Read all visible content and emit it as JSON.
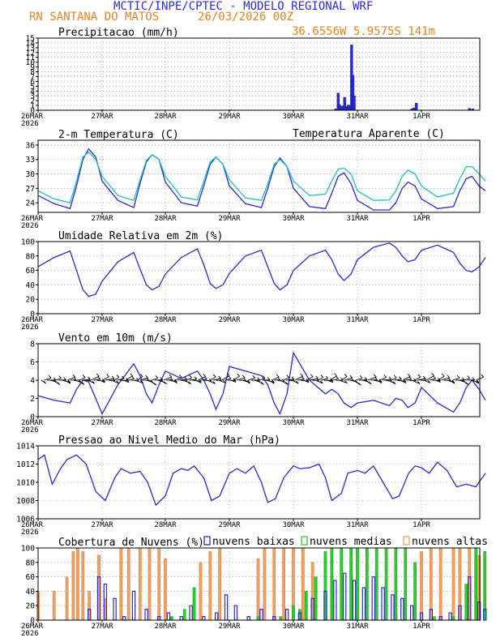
{
  "header": {
    "title": "MCTIC/INPE/CPTEC - MODELO REGIONAL WRF",
    "station": "RN SANTANA DO MATOS",
    "run": "26/03/2026 00Z",
    "coords": "36.6556W 5.9575S 141m",
    "title_color": "#2a2ae8",
    "subtitle_color": "#e8821e"
  },
  "axis": {
    "first_label": "26MAR",
    "first_year": "2026",
    "day_labels": [
      "27MAR",
      "28MAR",
      "29MAR",
      "30MAR",
      "31MAR",
      "1APR"
    ]
  },
  "chart_data": [
    {
      "type": "bar",
      "title": "Precipitacao (mm/h)",
      "ylim": [
        0,
        15
      ],
      "yticks": [
        0,
        1,
        2,
        3,
        4,
        5,
        6,
        7,
        8,
        9,
        10,
        11,
        12,
        13,
        14,
        15
      ],
      "color": "#2929d6",
      "x_unit": "days since 26MAR 00Z",
      "points": [
        {
          "x": 1.0,
          "y": 0.1
        },
        {
          "x": 3.02,
          "y": 0.1
        },
        {
          "x": 4.66,
          "y": 0.3
        },
        {
          "x": 4.7,
          "y": 3.6
        },
        {
          "x": 4.72,
          "y": 1.2
        },
        {
          "x": 4.76,
          "y": 0.9
        },
        {
          "x": 4.8,
          "y": 2.7
        },
        {
          "x": 4.84,
          "y": 0.8
        },
        {
          "x": 4.86,
          "y": 1.1
        },
        {
          "x": 4.88,
          "y": 0.9
        },
        {
          "x": 4.91,
          "y": 13.6
        },
        {
          "x": 4.93,
          "y": 7.3
        },
        {
          "x": 4.95,
          "y": 3.0
        },
        {
          "x": 5.85,
          "y": 0.3
        },
        {
          "x": 5.88,
          "y": 0.5
        },
        {
          "x": 5.92,
          "y": 1.5
        },
        {
          "x": 6.75,
          "y": 0.4
        },
        {
          "x": 6.8,
          "y": 0.3
        }
      ]
    },
    {
      "type": "line",
      "title": "2-m Temperatura (C)",
      "ylim": [
        22,
        37
      ],
      "yticks": [
        24,
        27,
        30,
        33,
        36
      ],
      "series": [
        {
          "name": "2-m Temperatura (C)",
          "color": "#2929d6",
          "x": [
            0.0,
            0.25,
            0.5,
            0.6,
            0.7,
            0.79,
            0.9,
            1.0,
            1.25,
            1.5,
            1.6,
            1.7,
            1.79,
            1.9,
            2.0,
            2.25,
            2.5,
            2.6,
            2.7,
            2.79,
            2.9,
            3.0,
            3.25,
            3.5,
            3.6,
            3.7,
            3.79,
            3.9,
            4.0,
            4.25,
            4.5,
            4.6,
            4.7,
            4.79,
            4.9,
            5.0,
            5.25,
            5.5,
            5.6,
            5.7,
            5.79,
            5.9,
            6.0,
            6.25,
            6.5,
            6.6,
            6.7,
            6.79,
            6.9,
            7.0
          ],
          "y": [
            25.5,
            23.8,
            22.8,
            27.5,
            33.0,
            35.2,
            33.5,
            28.5,
            24.5,
            23.0,
            28.0,
            32.5,
            34.0,
            33.0,
            28.3,
            24.0,
            23.3,
            27.5,
            32.0,
            33.5,
            32.0,
            27.5,
            23.8,
            23.0,
            27.0,
            31.5,
            33.3,
            31.5,
            27.0,
            23.2,
            22.8,
            26.0,
            29.5,
            30.2,
            28.0,
            24.5,
            22.5,
            22.5,
            24.0,
            27.0,
            28.3,
            27.5,
            24.8,
            22.8,
            23.2,
            26.5,
            29.0,
            29.5,
            27.5,
            26.5
          ]
        },
        {
          "name": "Temperatura Aparente (C)",
          "color": "#20c0c0",
          "x": [
            0.0,
            0.25,
            0.5,
            0.6,
            0.7,
            0.79,
            0.9,
            1.0,
            1.25,
            1.5,
            1.6,
            1.7,
            1.79,
            1.9,
            2.0,
            2.25,
            2.5,
            2.6,
            2.7,
            2.79,
            2.9,
            3.0,
            3.25,
            3.5,
            3.6,
            3.7,
            3.79,
            3.9,
            4.0,
            4.25,
            4.5,
            4.6,
            4.7,
            4.79,
            4.9,
            5.0,
            5.25,
            5.5,
            5.6,
            5.7,
            5.79,
            5.9,
            6.0,
            6.25,
            6.5,
            6.6,
            6.7,
            6.79,
            6.9,
            7.0
          ],
          "y": [
            26.5,
            24.8,
            24.0,
            28.5,
            33.5,
            34.5,
            33.0,
            29.5,
            25.5,
            24.5,
            28.8,
            32.8,
            34.0,
            33.0,
            29.5,
            25.2,
            24.6,
            28.5,
            32.5,
            33.5,
            32.0,
            28.8,
            25.0,
            24.5,
            28.0,
            32.0,
            33.0,
            31.5,
            28.5,
            25.5,
            25.8,
            28.5,
            31.0,
            31.2,
            30.0,
            26.5,
            24.5,
            24.6,
            26.5,
            29.5,
            30.8,
            30.0,
            27.5,
            25.2,
            26.0,
            29.0,
            31.5,
            31.5,
            30.0,
            28.5
          ]
        }
      ],
      "legend": "Temperatura Aparente (C)"
    },
    {
      "type": "line",
      "title": "Umidade Relativa em 2m (%)",
      "ylim": [
        0,
        100
      ],
      "yticks": [
        0,
        20,
        40,
        60,
        80,
        100
      ],
      "series": [
        {
          "name": "Umidade Relativa em 2m (%)",
          "color": "#2929d6",
          "x": [
            0.0,
            0.25,
            0.5,
            0.6,
            0.7,
            0.79,
            0.9,
            1.0,
            1.25,
            1.5,
            1.6,
            1.7,
            1.79,
            1.9,
            2.0,
            2.25,
            2.5,
            2.6,
            2.7,
            2.79,
            2.9,
            3.0,
            3.25,
            3.5,
            3.6,
            3.7,
            3.79,
            3.9,
            4.0,
            4.25,
            4.5,
            4.6,
            4.7,
            4.79,
            4.9,
            5.0,
            5.25,
            5.5,
            5.6,
            5.7,
            5.79,
            5.9,
            6.0,
            6.25,
            6.5,
            6.6,
            6.7,
            6.79,
            6.9,
            7.0
          ],
          "y": [
            65,
            78,
            87,
            60,
            33,
            24,
            27,
            45,
            72,
            85,
            62,
            40,
            33,
            38,
            55,
            78,
            90,
            68,
            42,
            35,
            40,
            56,
            80,
            88,
            65,
            42,
            33,
            40,
            60,
            80,
            88,
            75,
            55,
            46,
            55,
            75,
            92,
            98,
            92,
            80,
            72,
            75,
            88,
            95,
            85,
            70,
            60,
            58,
            65,
            78
          ]
        }
      ]
    },
    {
      "type": "line",
      "title": "Vento em 10m (m/s)",
      "ylim": [
        0,
        8
      ],
      "yticks": [
        0,
        2,
        4,
        6,
        8
      ],
      "note": "wind barbs drawn along the 4 m/s level",
      "series": [
        {
          "name": "Vento em 10m (m/s)",
          "color": "#2929d6",
          "x": [
            0.0,
            0.25,
            0.5,
            0.6,
            0.7,
            0.79,
            0.9,
            1.0,
            1.25,
            1.5,
            1.6,
            1.7,
            1.79,
            1.9,
            2.0,
            2.25,
            2.5,
            2.6,
            2.7,
            2.79,
            2.9,
            3.0,
            3.25,
            3.5,
            3.6,
            3.7,
            3.79,
            3.9,
            4.0,
            4.25,
            4.5,
            4.6,
            4.7,
            4.79,
            4.9,
            5.0,
            5.25,
            5.5,
            5.6,
            5.7,
            5.79,
            5.9,
            6.0,
            6.25,
            6.5,
            6.6,
            6.7,
            6.79,
            6.9,
            7.0
          ],
          "y": [
            2.3,
            1.8,
            1.5,
            3.0,
            4.0,
            3.8,
            2.0,
            0.3,
            3.5,
            5.8,
            4.5,
            2.5,
            1.5,
            3.5,
            5.0,
            4.2,
            5.0,
            4.0,
            2.5,
            0.8,
            2.5,
            5.5,
            5.0,
            4.5,
            3.5,
            1.5,
            0.3,
            2.5,
            7.0,
            4.0,
            2.5,
            3.0,
            2.5,
            1.5,
            1.0,
            1.5,
            1.8,
            1.2,
            2.0,
            1.8,
            1.0,
            1.5,
            3.2,
            1.5,
            0.5,
            1.5,
            3.2,
            4.0,
            3.0,
            1.8
          ]
        }
      ]
    },
    {
      "type": "line",
      "title": "Pressao ao Nivel Medio do Mar (hPa)",
      "ylim": [
        1006,
        1014
      ],
      "yticks": [
        1006,
        1008,
        1010,
        1012,
        1014
      ],
      "series": [
        {
          "name": "Pressao ao Nivel Medio do Mar (hPa)",
          "color": "#2929d6",
          "x": [
            0.0,
            0.1,
            0.22,
            0.35,
            0.45,
            0.6,
            0.75,
            0.9,
            1.05,
            1.2,
            1.3,
            1.45,
            1.6,
            1.72,
            1.85,
            2.0,
            2.12,
            2.25,
            2.35,
            2.45,
            2.6,
            2.72,
            2.85,
            3.0,
            3.12,
            3.25,
            3.38,
            3.5,
            3.6,
            3.72,
            3.85,
            4.0,
            4.1,
            4.25,
            4.4,
            4.5,
            4.6,
            4.75,
            4.85,
            5.0,
            5.12,
            5.25,
            5.4,
            5.55,
            5.65,
            5.8,
            5.9,
            6.0,
            6.12,
            6.25,
            6.4,
            6.55,
            6.7,
            6.85,
            7.0
          ],
          "y": [
            1012.5,
            1013.0,
            1009.8,
            1011.5,
            1012.5,
            1013.0,
            1012.0,
            1009.0,
            1008.0,
            1010.5,
            1011.5,
            1011.0,
            1011.2,
            1010.0,
            1007.5,
            1008.5,
            1011.0,
            1011.5,
            1011.3,
            1011.8,
            1010.5,
            1008.0,
            1008.5,
            1011.0,
            1011.5,
            1011.0,
            1011.8,
            1010.0,
            1007.8,
            1008.2,
            1010.5,
            1011.8,
            1011.5,
            1011.6,
            1012.0,
            1010.5,
            1008.0,
            1008.8,
            1011.0,
            1011.3,
            1011.0,
            1011.8,
            1010.0,
            1008.2,
            1008.5,
            1011.0,
            1011.8,
            1011.6,
            1011.0,
            1012.2,
            1011.3,
            1009.5,
            1009.8,
            1009.5,
            1011.0
          ]
        }
      ]
    },
    {
      "type": "bar",
      "title": "Cobertura de Nuvens (%)",
      "ylim": [
        0,
        100
      ],
      "yticks": [
        0,
        20,
        40,
        60,
        80,
        100
      ],
      "legend": [
        "nuvens baixas",
        "nuvens medias",
        "nuvens altas"
      ],
      "series": [
        {
          "name": "nuvens altas",
          "color": "#f2a060",
          "x": [
            0.0,
            0.25,
            0.45,
            0.55,
            0.62,
            0.7,
            0.8,
            0.95,
            1.05,
            1.3,
            1.42,
            1.6,
            1.75,
            1.9,
            2.0,
            2.1,
            2.3,
            2.45,
            2.55,
            2.7,
            2.85,
            3.0,
            3.15,
            3.3,
            3.45,
            3.55,
            3.7,
            3.85,
            4.0,
            4.15,
            4.3,
            4.5,
            4.62,
            4.75,
            4.9,
            5.05,
            5.2,
            5.4,
            5.6,
            5.75,
            5.9,
            6.0,
            6.15,
            6.3,
            6.5,
            6.6,
            6.75,
            6.9,
            6.99
          ],
          "y": [
            40,
            40,
            60,
            95,
            100,
            95,
            40,
            90,
            30,
            100,
            100,
            100,
            100,
            100,
            85,
            0,
            0,
            0,
            80,
            95,
            100,
            0,
            0,
            0,
            85,
            100,
            100,
            100,
            100,
            100,
            80,
            0,
            0,
            0,
            0,
            0,
            0,
            0,
            10,
            0,
            0,
            95,
            100,
            100,
            100,
            100,
            100,
            90,
            95
          ]
        },
        {
          "name": "nuvens medias",
          "color": "#2ecc2e",
          "x": [
            0.0,
            0.6,
            1.3,
            1.7,
            1.9,
            2.1,
            2.3,
            2.45,
            2.7,
            3.0,
            3.2,
            3.45,
            3.6,
            3.8,
            4.0,
            4.1,
            4.2,
            4.35,
            4.5,
            4.6,
            4.75,
            4.9,
            5.0,
            5.15,
            5.3,
            5.45,
            5.6,
            5.75,
            5.9,
            6.0,
            6.2,
            6.5,
            6.7,
            6.85,
            6.99
          ],
          "y": [
            0,
            0,
            0,
            0,
            0,
            5,
            15,
            45,
            0,
            0,
            0,
            5,
            0,
            5,
            20,
            15,
            40,
            60,
            95,
            100,
            100,
            100,
            100,
            100,
            100,
            100,
            100,
            100,
            80,
            0,
            5,
            5,
            50,
            100,
            95
          ]
        },
        {
          "name": "nuvens baixas",
          "color": "#2929d6",
          "x": [
            0.0,
            0.6,
            0.8,
            0.95,
            1.05,
            1.2,
            1.35,
            1.5,
            1.7,
            1.9,
            2.05,
            2.25,
            2.4,
            2.6,
            2.8,
            2.95,
            3.1,
            3.3,
            3.5,
            3.7,
            3.9,
            4.1,
            4.3,
            4.5,
            4.65,
            4.8,
            4.95,
            5.1,
            5.25,
            5.4,
            5.55,
            5.7,
            5.85,
            6.0,
            6.15,
            6.3,
            6.45,
            6.6,
            6.75,
            6.9,
            6.99
          ],
          "y": [
            0,
            0,
            15,
            60,
            50,
            30,
            5,
            40,
            15,
            5,
            10,
            5,
            20,
            5,
            10,
            35,
            20,
            5,
            15,
            5,
            15,
            10,
            30,
            40,
            55,
            65,
            55,
            45,
            60,
            45,
            35,
            30,
            20,
            10,
            15,
            5,
            10,
            20,
            60,
            25,
            15
          ]
        }
      ]
    }
  ]
}
